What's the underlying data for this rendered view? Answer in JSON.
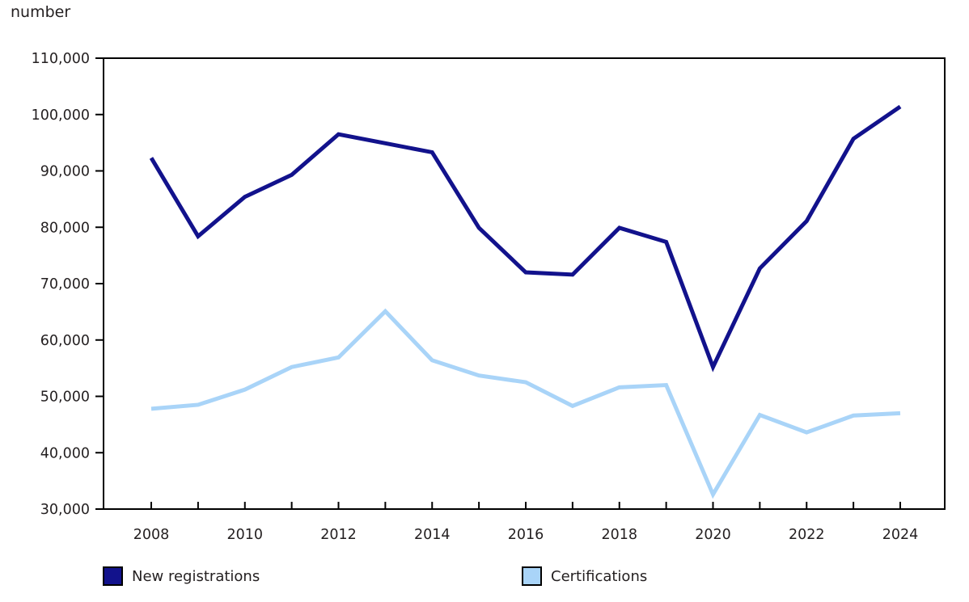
{
  "chart_data": {
    "type": "line",
    "title": "",
    "unit_label": "number",
    "x": [
      2008,
      2009,
      2010,
      2011,
      2012,
      2013,
      2014,
      2015,
      2016,
      2017,
      2018,
      2019,
      2020,
      2021,
      2022,
      2023,
      2024
    ],
    "series": [
      {
        "name": "New registrations",
        "color": "#12128c",
        "values": [
          92300,
          78400,
          85400,
          89300,
          96500,
          94900,
          93300,
          79900,
          72000,
          71600,
          79900,
          77400,
          55200,
          72700,
          81100,
          95700,
          101400
        ]
      },
      {
        "name": "Certifications",
        "color": "#a9d4f8",
        "values": [
          47800,
          48500,
          51200,
          55200,
          56900,
          65100,
          56400,
          53700,
          52500,
          48300,
          51600,
          52000,
          32600,
          46700,
          43600,
          46600,
          47000
        ]
      }
    ],
    "y_axis": {
      "min": 30000,
      "max": 110000,
      "tick_step": 10000,
      "tick_labels": [
        "110,000",
        "100,000",
        "90,000",
        "80,000",
        "70,000",
        "60,000",
        "50,000",
        "40,000",
        "30,000"
      ]
    },
    "x_axis": {
      "tick_every_year": 1,
      "labeled_years": [
        "2008",
        "2010",
        "2012",
        "2014",
        "2016",
        "2018",
        "2020",
        "2022",
        "2024"
      ]
    },
    "grid": false,
    "legend_position": "bottom",
    "axis_color": "#000000",
    "text_color": "#231f20"
  }
}
